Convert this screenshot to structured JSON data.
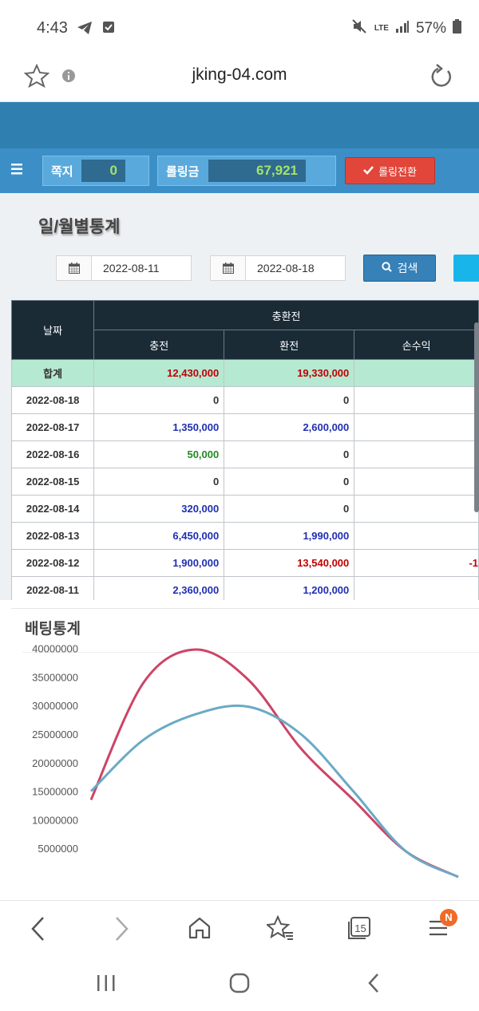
{
  "status_bar": {
    "time": "4:43",
    "battery": "57%",
    "network": "LTE",
    "icons": [
      "telegram-icon",
      "check-box-icon",
      "mute-icon",
      "signal-icon",
      "battery-icon"
    ]
  },
  "browser": {
    "url": "jking-04.com",
    "tab_count": "15",
    "notification_badge": "N"
  },
  "header": {
    "message_label": "쪽지",
    "message_count": "0",
    "rolling_label": "롤링금",
    "rolling_value": "67,921",
    "rolling_button": "롤링전환",
    "accent_color": "#3b8fc6",
    "value_color": "#a4e36b"
  },
  "page": {
    "title": "일/월별통계",
    "date_from": "2022-08-11",
    "date_to": "2022-08-18",
    "search_button": "검색"
  },
  "table": {
    "header_date": "날짜",
    "header_group": "충환전",
    "columns": [
      "충전",
      "환전",
      "손수익"
    ],
    "total_label": "합계",
    "total": {
      "charge": "12,430,000",
      "exchange": "19,330,000",
      "profit": "-"
    },
    "rows": [
      {
        "date": "2022-08-18",
        "charge": "0",
        "exchange": "0",
        "profit": "",
        "charge_color": "#333333",
        "exchange_color": "#333333"
      },
      {
        "date": "2022-08-17",
        "charge": "1,350,000",
        "exchange": "2,600,000",
        "profit": "-",
        "charge_color": "#1f2fb0",
        "exchange_color": "#1f2fb0"
      },
      {
        "date": "2022-08-16",
        "charge": "50,000",
        "exchange": "0",
        "profit": "",
        "charge_color": "#238a23",
        "exchange_color": "#333333"
      },
      {
        "date": "2022-08-15",
        "charge": "0",
        "exchange": "0",
        "profit": "",
        "charge_color": "#333333",
        "exchange_color": "#333333"
      },
      {
        "date": "2022-08-14",
        "charge": "320,000",
        "exchange": "0",
        "profit": "",
        "charge_color": "#1f2fb0",
        "exchange_color": "#333333"
      },
      {
        "date": "2022-08-13",
        "charge": "6,450,000",
        "exchange": "1,990,000",
        "profit": "",
        "charge_color": "#1f2fb0",
        "exchange_color": "#1f2fb0"
      },
      {
        "date": "2022-08-12",
        "charge": "1,900,000",
        "exchange": "13,540,000",
        "profit": "-1",
        "charge_color": "#1f2fb0",
        "exchange_color": "#c00000"
      },
      {
        "date": "2022-08-11",
        "charge": "2,360,000",
        "exchange": "1,200,000",
        "profit": "",
        "charge_color": "#1f2fb0",
        "exchange_color": "#1f2fb0"
      }
    ]
  },
  "betting": {
    "title": "배팅통계"
  },
  "chart_data": {
    "type": "line",
    "title": "",
    "xlabel": "",
    "ylabel": "",
    "yticks": [
      "5000000",
      "10000000",
      "15000000",
      "20000000",
      "25000000",
      "30000000",
      "35000000",
      "40000000"
    ],
    "ylim": [
      0,
      42000000
    ],
    "x": [
      0,
      1,
      2,
      3,
      4,
      5,
      6,
      7
    ],
    "series": [
      {
        "values": [
          13500000,
          34000000,
          39800000,
          34500000,
          22500000,
          13500000,
          4500000,
          0
        ],
        "color": "#cc4466"
      },
      {
        "values": [
          15000000,
          24000000,
          28500000,
          29800000,
          25000000,
          15000000,
          4500000,
          0
        ],
        "color": "#6aaac6"
      }
    ],
    "grid": false
  }
}
